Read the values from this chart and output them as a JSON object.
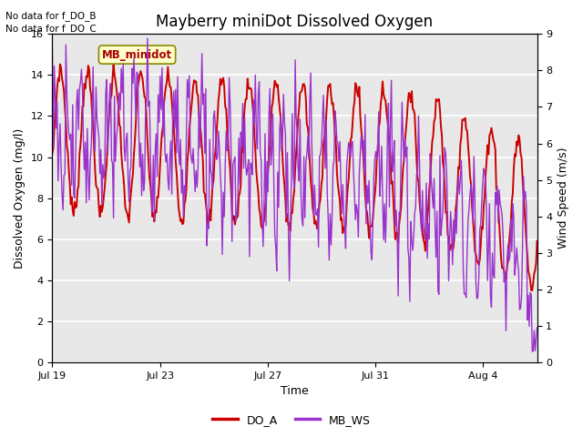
{
  "title": "Mayberry miniDot Dissolved Oxygen",
  "xlabel": "Time",
  "ylabel_left": "Dissolved Oxygen (mg/l)",
  "ylabel_right": "Wind Speed (m/s)",
  "note_line1": "No data for f_DO_B",
  "note_line2": "No data for f_DO_C",
  "legend_label": "MB_minidot",
  "legend_bg": "#ffffcc",
  "legend_border": "#888800",
  "do_color": "#cc0000",
  "ws_color": "#9933cc",
  "fig_bg": "#ffffff",
  "plot_bg": "#e8e8e8",
  "ylim_left": [
    0,
    16
  ],
  "ylim_right": [
    0.0,
    9.0
  ],
  "yticks_left": [
    0,
    2,
    4,
    6,
    8,
    10,
    12,
    14,
    16
  ],
  "yticks_right": [
    0.0,
    1.0,
    2.0,
    3.0,
    4.0,
    5.0,
    6.0,
    7.0,
    8.0,
    9.0
  ],
  "xtick_labels": [
    "Jul 19",
    "Jul 23",
    "Jul 27",
    "Jul 31",
    "Aug 4"
  ],
  "xtick_positions": [
    0,
    4,
    8,
    12,
    16
  ],
  "xlim": [
    0,
    18
  ],
  "linewidth_do": 1.4,
  "linewidth_ws": 1.0,
  "legend_do_label": "DO_A",
  "legend_ws_label": "MB_WS",
  "n_points": 500,
  "title_fontsize": 12,
  "label_fontsize": 9,
  "tick_fontsize": 8
}
